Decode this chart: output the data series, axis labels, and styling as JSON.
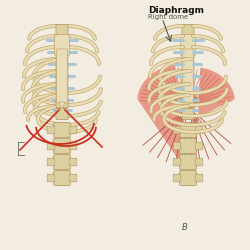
{
  "title": "Diaphragm",
  "subtitle": "Right dome",
  "label_b": "B",
  "bg_color": "#f2ede0",
  "bone_color": "#e8ddb8",
  "bone_edge": "#c4a96a",
  "cartilage_color": "#a8c8d8",
  "muscle_light": "#e89080",
  "muscle_mid": "#c85840",
  "muscle_dark": "#a03020",
  "diap_red": "#c83020",
  "spine_color": "#ddd0a0",
  "spine_edge": "#b09060",
  "text_color": "#111111",
  "label_color": "#555555",
  "title_fontsize": 6.5,
  "subtitle_fontsize": 5.0,
  "label_b_fontsize": 6,
  "fig_width": 2.5,
  "fig_height": 2.5,
  "dpi": 100
}
